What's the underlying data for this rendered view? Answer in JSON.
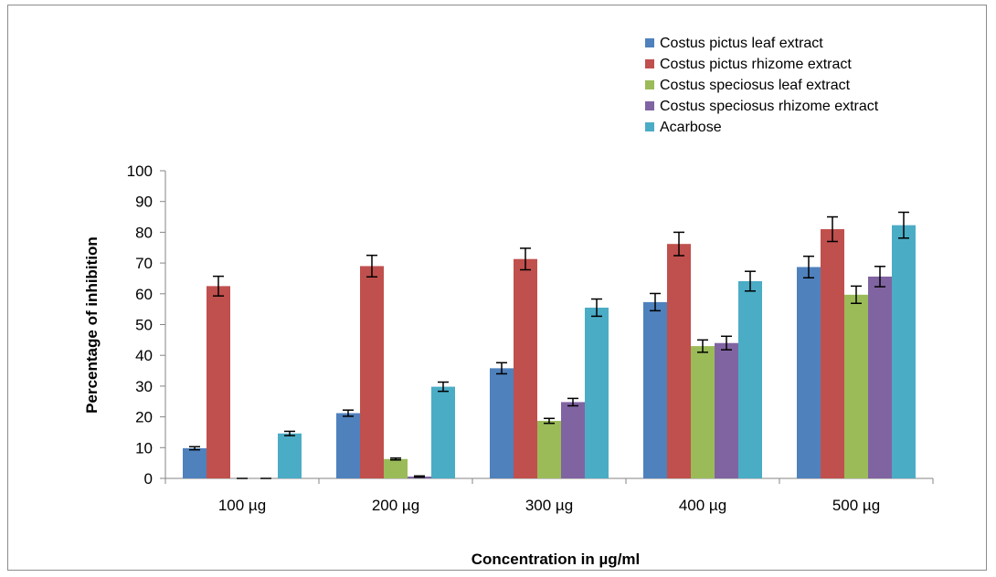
{
  "chart_data": {
    "type": "bar",
    "xlabel": "Concentration in  µg/ml",
    "ylabel": "Percentage of inhibition",
    "ylim": [
      0,
      100
    ],
    "yticks": [
      "0",
      "10",
      "20",
      "30",
      "40",
      "50",
      "60",
      "70",
      "80",
      "90",
      "100"
    ],
    "grid": false,
    "legend_position": "top-right",
    "categories": [
      "100 µg",
      "200 µg",
      "300 µg",
      "400 µg",
      "500 µg"
    ],
    "series": [
      {
        "name": "Costus pictus leaf extract",
        "color": "#4f81bd",
        "values": [
          9.8,
          21.2,
          35.8,
          57.3,
          68.7
        ],
        "errors": [
          0.5,
          1.0,
          1.8,
          2.8,
          3.5
        ]
      },
      {
        "name": "Costus pictus rhizome extract",
        "color": "#c0504d",
        "values": [
          62.5,
          69.0,
          71.3,
          76.2,
          81.0
        ],
        "errors": [
          3.2,
          3.5,
          3.5,
          3.8,
          4.0
        ]
      },
      {
        "name": "Costus speciosus leaf extract",
        "color": "#9bbb59",
        "values": [
          0,
          6.3,
          18.7,
          43.0,
          59.7
        ],
        "errors": [
          0,
          0.3,
          0.8,
          2.0,
          2.8
        ]
      },
      {
        "name": "Costus speciosus rhizome extract",
        "color": "#8064a2",
        "values": [
          0,
          0.6,
          24.8,
          44.0,
          65.6
        ],
        "errors": [
          0,
          0.2,
          1.2,
          2.2,
          3.3
        ]
      },
      {
        "name": "Acarbose",
        "color": "#4bacc6",
        "values": [
          14.6,
          29.8,
          55.5,
          64.1,
          82.3
        ],
        "errors": [
          0.7,
          1.5,
          2.8,
          3.2,
          4.2
        ]
      }
    ]
  }
}
